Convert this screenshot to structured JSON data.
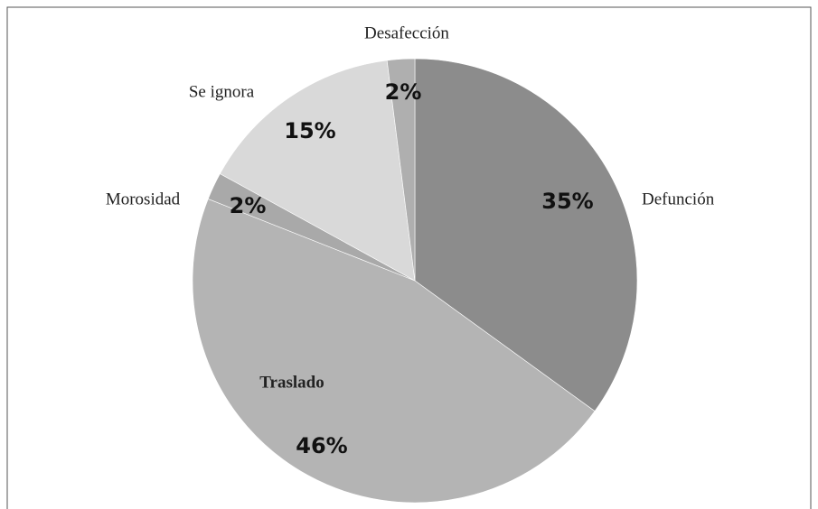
{
  "chart_data": {
    "type": "pie",
    "categories": [
      "Defunción",
      "Traslado",
      "Morosidad",
      "Se ignora",
      "Desafección"
    ],
    "values": [
      35,
      46,
      2,
      15,
      2
    ],
    "value_labels": [
      "35%",
      "46%",
      "2%",
      "15%",
      "2%"
    ],
    "colors": [
      "#8c8c8c",
      "#b4b4b4",
      "#a9a9a9",
      "#d9d9d9",
      "#afafaf"
    ]
  }
}
